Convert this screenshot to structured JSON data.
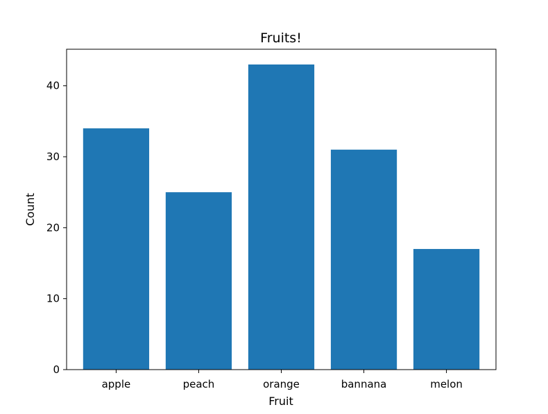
{
  "chart_data": {
    "type": "bar",
    "title": "Fruits!",
    "xlabel": "Fruit",
    "ylabel": "Count",
    "categories": [
      "apple",
      "peach",
      "orange",
      "bannana",
      "melon"
    ],
    "values": [
      34,
      25,
      43,
      31,
      17
    ],
    "ylim": [
      0,
      45.15
    ],
    "yticks": [
      0,
      10,
      20,
      30,
      40
    ],
    "ytick_labels": [
      "0",
      "10",
      "20",
      "30",
      "40"
    ],
    "grid": false,
    "legend": "none",
    "bar_color": "#1f77b4"
  }
}
